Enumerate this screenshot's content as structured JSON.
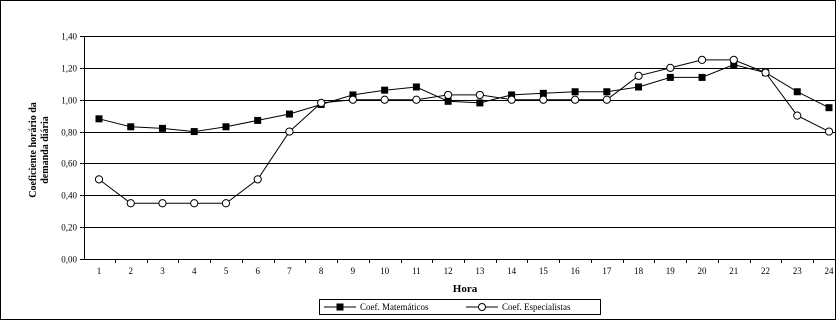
{
  "chart_data": {
    "type": "line",
    "xlabel": "Hora",
    "ylabel_lines": [
      "Coeficiente horário da",
      "demanda diária"
    ],
    "ylim": [
      0,
      1.4
    ],
    "y_ticks": [
      "0,00",
      "0,20",
      "0,40",
      "0,60",
      "0,80",
      "1,00",
      "1,20",
      "1,40"
    ],
    "categories": [
      "1",
      "2",
      "3",
      "4",
      "5",
      "6",
      "7",
      "8",
      "9",
      "10",
      "11",
      "12",
      "13",
      "14",
      "15",
      "16",
      "17",
      "18",
      "19",
      "20",
      "21",
      "22",
      "23",
      "24"
    ],
    "grid": "horizontal",
    "legend_position": "bottom",
    "series": [
      {
        "name": "Coef. Matemáticos",
        "marker": "filled-square",
        "color": "#000000",
        "values": [
          0.88,
          0.83,
          0.82,
          0.8,
          0.83,
          0.87,
          0.91,
          0.97,
          1.03,
          1.06,
          1.08,
          0.99,
          0.98,
          1.03,
          1.04,
          1.05,
          1.05,
          1.08,
          1.14,
          1.14,
          1.22,
          1.17,
          1.05,
          0.95
        ]
      },
      {
        "name": "Coef. Especialistas",
        "marker": "open-circle",
        "color": "#000000",
        "values": [
          0.5,
          0.35,
          0.35,
          0.35,
          0.35,
          0.5,
          0.8,
          0.98,
          1.0,
          1.0,
          1.0,
          1.03,
          1.03,
          1.0,
          1.0,
          1.0,
          1.0,
          1.15,
          1.2,
          1.25,
          1.25,
          1.17,
          0.9,
          0.8
        ]
      }
    ]
  }
}
